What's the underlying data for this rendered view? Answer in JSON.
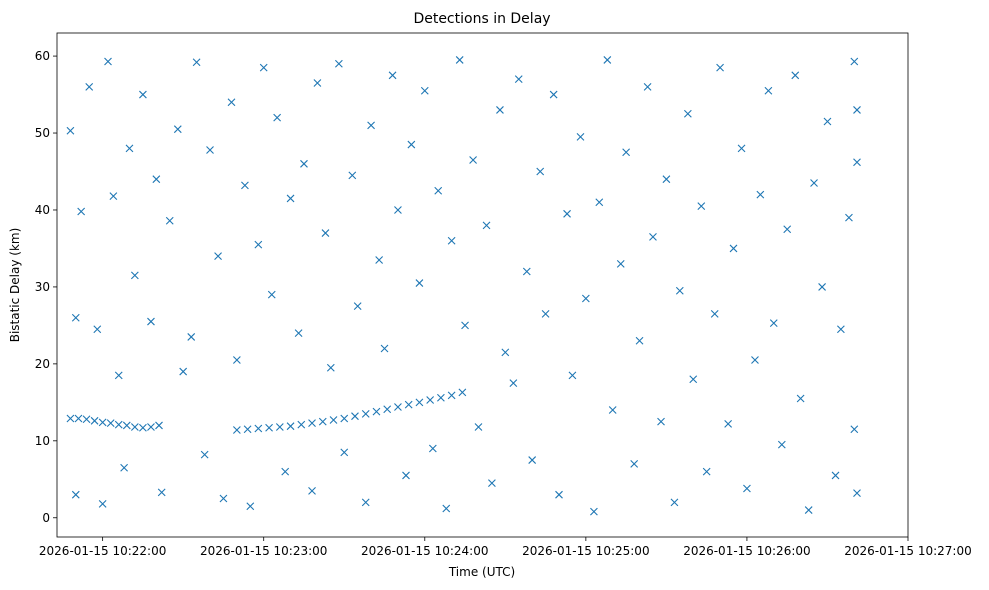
{
  "chart_data": {
    "type": "scatter",
    "title": "Detections in Delay",
    "xlabel": "Time (UTC)",
    "ylabel": "Bistatic Delay (km)",
    "x_is_time": true,
    "xlim": [
      "2026-01-15 10:21:43",
      "2026-01-15 10:27:00"
    ],
    "ylim": [
      -2.5,
      63
    ],
    "x_ticks": [
      "2026-01-15 10:22:00",
      "2026-01-15 10:23:00",
      "2026-01-15 10:24:00",
      "2026-01-15 10:25:00",
      "2026-01-15 10:26:00",
      "2026-01-15 10:27:00"
    ],
    "y_ticks": [
      0,
      10,
      20,
      30,
      40,
      50,
      60
    ],
    "marker": "x",
    "color": "#1f77b4",
    "grid": false,
    "series": [
      {
        "name": "",
        "points": [
          [
            "2026-01-15 10:21:48",
            12.9
          ],
          [
            "2026-01-15 10:21:51",
            12.9
          ],
          [
            "2026-01-15 10:21:54",
            12.8
          ],
          [
            "2026-01-15 10:21:57",
            12.6
          ],
          [
            "2026-01-15 10:22:00",
            12.4
          ],
          [
            "2026-01-15 10:22:03",
            12.3
          ],
          [
            "2026-01-15 10:22:06",
            12.1
          ],
          [
            "2026-01-15 10:22:09",
            12.0
          ],
          [
            "2026-01-15 10:22:12",
            11.8
          ],
          [
            "2026-01-15 10:22:15",
            11.7
          ],
          [
            "2026-01-15 10:22:18",
            11.8
          ],
          [
            "2026-01-15 10:22:21",
            12.0
          ],
          [
            "2026-01-15 10:22:50",
            11.4
          ],
          [
            "2026-01-15 10:22:54",
            11.5
          ],
          [
            "2026-01-15 10:22:58",
            11.6
          ],
          [
            "2026-01-15 10:23:02",
            11.7
          ],
          [
            "2026-01-15 10:23:06",
            11.8
          ],
          [
            "2026-01-15 10:23:10",
            11.9
          ],
          [
            "2026-01-15 10:23:14",
            12.1
          ],
          [
            "2026-01-15 10:23:18",
            12.3
          ],
          [
            "2026-01-15 10:23:22",
            12.5
          ],
          [
            "2026-01-15 10:23:26",
            12.7
          ],
          [
            "2026-01-15 10:23:30",
            12.9
          ],
          [
            "2026-01-15 10:23:34",
            13.2
          ],
          [
            "2026-01-15 10:23:38",
            13.5
          ],
          [
            "2026-01-15 10:23:42",
            13.8
          ],
          [
            "2026-01-15 10:23:46",
            14.1
          ],
          [
            "2026-01-15 10:23:50",
            14.4
          ],
          [
            "2026-01-15 10:23:54",
            14.7
          ],
          [
            "2026-01-15 10:23:58",
            15.0
          ],
          [
            "2026-01-15 10:24:02",
            15.3
          ],
          [
            "2026-01-15 10:24:06",
            15.6
          ],
          [
            "2026-01-15 10:24:10",
            15.9
          ],
          [
            "2026-01-15 10:24:14",
            16.3
          ],
          [
            "2026-01-15 10:21:48",
            50.3
          ],
          [
            "2026-01-15 10:21:50",
            26.0
          ],
          [
            "2026-01-15 10:21:50",
            3.0
          ],
          [
            "2026-01-15 10:21:52",
            39.8
          ],
          [
            "2026-01-15 10:21:55",
            56.0
          ],
          [
            "2026-01-15 10:21:58",
            24.5
          ],
          [
            "2026-01-15 10:22:00",
            1.8
          ],
          [
            "2026-01-15 10:22:02",
            59.3
          ],
          [
            "2026-01-15 10:22:04",
            41.8
          ],
          [
            "2026-01-15 10:22:06",
            18.5
          ],
          [
            "2026-01-15 10:22:08",
            6.5
          ],
          [
            "2026-01-15 10:22:10",
            48.0
          ],
          [
            "2026-01-15 10:22:12",
            31.5
          ],
          [
            "2026-01-15 10:22:15",
            55.0
          ],
          [
            "2026-01-15 10:22:18",
            25.5
          ],
          [
            "2026-01-15 10:22:20",
            44.0
          ],
          [
            "2026-01-15 10:22:22",
            3.3
          ],
          [
            "2026-01-15 10:22:25",
            38.6
          ],
          [
            "2026-01-15 10:22:28",
            50.5
          ],
          [
            "2026-01-15 10:22:30",
            19.0
          ],
          [
            "2026-01-15 10:22:33",
            23.5
          ],
          [
            "2026-01-15 10:22:35",
            59.2
          ],
          [
            "2026-01-15 10:22:38",
            8.2
          ],
          [
            "2026-01-15 10:22:40",
            47.8
          ],
          [
            "2026-01-15 10:22:43",
            34.0
          ],
          [
            "2026-01-15 10:22:45",
            2.5
          ],
          [
            "2026-01-15 10:22:48",
            54.0
          ],
          [
            "2026-01-15 10:22:50",
            20.5
          ],
          [
            "2026-01-15 10:22:53",
            43.2
          ],
          [
            "2026-01-15 10:22:55",
            1.5
          ],
          [
            "2026-01-15 10:22:58",
            35.5
          ],
          [
            "2026-01-15 10:23:00",
            58.5
          ],
          [
            "2026-01-15 10:23:03",
            29.0
          ],
          [
            "2026-01-15 10:23:05",
            52.0
          ],
          [
            "2026-01-15 10:23:08",
            6.0
          ],
          [
            "2026-01-15 10:23:10",
            41.5
          ],
          [
            "2026-01-15 10:23:13",
            24.0
          ],
          [
            "2026-01-15 10:23:15",
            46.0
          ],
          [
            "2026-01-15 10:23:18",
            3.5
          ],
          [
            "2026-01-15 10:23:20",
            56.5
          ],
          [
            "2026-01-15 10:23:23",
            37.0
          ],
          [
            "2026-01-15 10:23:25",
            19.5
          ],
          [
            "2026-01-15 10:23:28",
            59.0
          ],
          [
            "2026-01-15 10:23:30",
            8.5
          ],
          [
            "2026-01-15 10:23:33",
            44.5
          ],
          [
            "2026-01-15 10:23:35",
            27.5
          ],
          [
            "2026-01-15 10:23:38",
            2.0
          ],
          [
            "2026-01-15 10:23:40",
            51.0
          ],
          [
            "2026-01-15 10:23:43",
            33.5
          ],
          [
            "2026-01-15 10:23:45",
            22.0
          ],
          [
            "2026-01-15 10:23:48",
            57.5
          ],
          [
            "2026-01-15 10:23:50",
            40.0
          ],
          [
            "2026-01-15 10:23:53",
            5.5
          ],
          [
            "2026-01-15 10:23:55",
            48.5
          ],
          [
            "2026-01-15 10:23:58",
            30.5
          ],
          [
            "2026-01-15 10:24:00",
            55.5
          ],
          [
            "2026-01-15 10:24:03",
            9.0
          ],
          [
            "2026-01-15 10:24:05",
            42.5
          ],
          [
            "2026-01-15 10:24:08",
            1.2
          ],
          [
            "2026-01-15 10:24:10",
            36.0
          ],
          [
            "2026-01-15 10:24:13",
            59.5
          ],
          [
            "2026-01-15 10:24:15",
            25.0
          ],
          [
            "2026-01-15 10:24:18",
            46.5
          ],
          [
            "2026-01-15 10:24:20",
            11.8
          ],
          [
            "2026-01-15 10:24:23",
            38.0
          ],
          [
            "2026-01-15 10:24:25",
            4.5
          ],
          [
            "2026-01-15 10:24:28",
            53.0
          ],
          [
            "2026-01-15 10:24:30",
            21.5
          ],
          [
            "2026-01-15 10:24:33",
            17.5
          ],
          [
            "2026-01-15 10:24:35",
            57.0
          ],
          [
            "2026-01-15 10:24:38",
            32.0
          ],
          [
            "2026-01-15 10:24:40",
            7.5
          ],
          [
            "2026-01-15 10:24:43",
            45.0
          ],
          [
            "2026-01-15 10:24:45",
            26.5
          ],
          [
            "2026-01-15 10:24:48",
            55.0
          ],
          [
            "2026-01-15 10:24:50",
            3.0
          ],
          [
            "2026-01-15 10:24:53",
            39.5
          ],
          [
            "2026-01-15 10:24:55",
            18.5
          ],
          [
            "2026-01-15 10:24:58",
            49.5
          ],
          [
            "2026-01-15 10:25:00",
            28.5
          ],
          [
            "2026-01-15 10:25:03",
            0.8
          ],
          [
            "2026-01-15 10:25:05",
            41.0
          ],
          [
            "2026-01-15 10:25:08",
            59.5
          ],
          [
            "2026-01-15 10:25:10",
            14.0
          ],
          [
            "2026-01-15 10:25:13",
            33.0
          ],
          [
            "2026-01-15 10:25:15",
            47.5
          ],
          [
            "2026-01-15 10:25:18",
            7.0
          ],
          [
            "2026-01-15 10:25:20",
            23.0
          ],
          [
            "2026-01-15 10:25:23",
            56.0
          ],
          [
            "2026-01-15 10:25:25",
            36.5
          ],
          [
            "2026-01-15 10:25:28",
            12.5
          ],
          [
            "2026-01-15 10:25:30",
            44.0
          ],
          [
            "2026-01-15 10:25:33",
            2.0
          ],
          [
            "2026-01-15 10:25:35",
            29.5
          ],
          [
            "2026-01-15 10:25:38",
            52.5
          ],
          [
            "2026-01-15 10:25:40",
            18.0
          ],
          [
            "2026-01-15 10:25:43",
            40.5
          ],
          [
            "2026-01-15 10:25:45",
            6.0
          ],
          [
            "2026-01-15 10:25:48",
            26.5
          ],
          [
            "2026-01-15 10:25:50",
            58.5
          ],
          [
            "2026-01-15 10:25:53",
            12.2
          ],
          [
            "2026-01-15 10:25:55",
            35.0
          ],
          [
            "2026-01-15 10:25:58",
            48.0
          ],
          [
            "2026-01-15 10:26:00",
            3.8
          ],
          [
            "2026-01-15 10:26:03",
            20.5
          ],
          [
            "2026-01-15 10:26:05",
            42.0
          ],
          [
            "2026-01-15 10:26:08",
            55.5
          ],
          [
            "2026-01-15 10:26:10",
            25.3
          ],
          [
            "2026-01-15 10:26:13",
            9.5
          ],
          [
            "2026-01-15 10:26:15",
            37.5
          ],
          [
            "2026-01-15 10:26:18",
            57.5
          ],
          [
            "2026-01-15 10:26:20",
            15.5
          ],
          [
            "2026-01-15 10:26:23",
            1.0
          ],
          [
            "2026-01-15 10:26:25",
            43.5
          ],
          [
            "2026-01-15 10:26:28",
            30.0
          ],
          [
            "2026-01-15 10:26:30",
            51.5
          ],
          [
            "2026-01-15 10:26:33",
            5.5
          ],
          [
            "2026-01-15 10:26:35",
            24.5
          ],
          [
            "2026-01-15 10:26:38",
            39.0
          ],
          [
            "2026-01-15 10:26:40",
            59.3
          ],
          [
            "2026-01-15 10:26:40",
            11.5
          ],
          [
            "2026-01-15 10:26:41",
            3.2
          ],
          [
            "2026-01-15 10:26:41",
            46.2
          ],
          [
            "2026-01-15 10:26:41",
            53.0
          ]
        ]
      }
    ]
  }
}
